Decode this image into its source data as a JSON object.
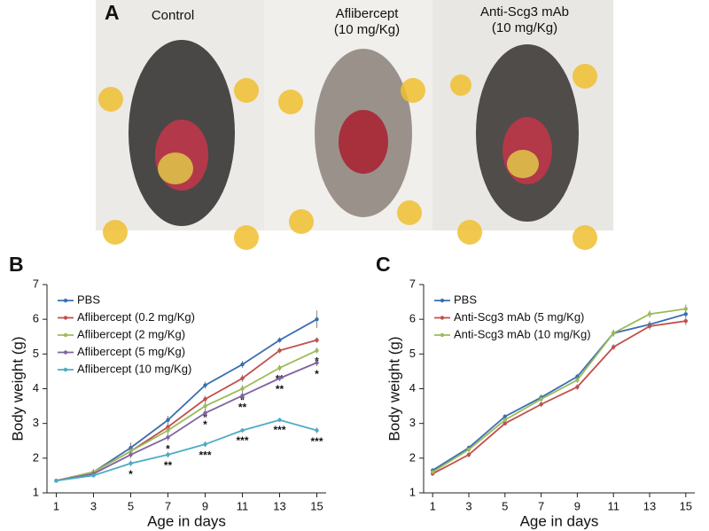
{
  "panel_a": {
    "label": "A",
    "captions": [
      [
        "Control"
      ],
      [
        "Aflibercept",
        "(10 mg/Kg)"
      ],
      [
        "Anti-Scg3 mAb",
        "(10 mg/Kg)"
      ]
    ]
  },
  "chart_data": [
    {
      "type": "line",
      "panel_label": "B",
      "x_label": "Age in days",
      "y_label": "Body weight (g)",
      "x": [
        1,
        3,
        5,
        7,
        9,
        11,
        13,
        15
      ],
      "xlim": [
        0.5,
        15.5
      ],
      "xticks": [
        1,
        3,
        5,
        7,
        9,
        11,
        13,
        15
      ],
      "ylim": [
        1,
        7
      ],
      "yticks": [
        1,
        2,
        3,
        4,
        5,
        6,
        7
      ],
      "legend": "upper left",
      "series": [
        {
          "name": "PBS",
          "color": "#3a6fb0",
          "values": [
            1.35,
            1.6,
            2.3,
            3.1,
            4.1,
            4.7,
            5.4,
            6.0
          ],
          "errors": [
            0.05,
            0.08,
            0.15,
            0.12,
            0.1,
            0.1,
            0.08,
            0.25
          ]
        },
        {
          "name": "Aflibercept (0.2 mg/Kg)",
          "color": "#c0504d",
          "values": [
            1.35,
            1.6,
            2.2,
            2.9,
            3.7,
            4.3,
            5.1,
            5.4
          ],
          "errors": [
            0.05,
            0.08,
            0.1,
            0.12,
            0.1,
            0.1,
            0.08,
            0.08
          ]
        },
        {
          "name": "Aflibercept (2 mg/Kg)",
          "color": "#9bbb59",
          "values": [
            1.35,
            1.6,
            2.2,
            2.8,
            3.5,
            4.0,
            4.6,
            5.1
          ],
          "errors": [
            0.05,
            0.08,
            0.1,
            0.1,
            0.1,
            0.1,
            0.08,
            0.08
          ],
          "significance": [
            null,
            null,
            null,
            null,
            "*",
            "*",
            "**",
            "*"
          ]
        },
        {
          "name": "Aflibercept (5 mg/Kg)",
          "color": "#8064a2",
          "values": [
            1.35,
            1.55,
            2.1,
            2.6,
            3.3,
            3.8,
            4.3,
            4.75
          ],
          "errors": [
            0.05,
            0.08,
            0.1,
            0.1,
            0.1,
            0.1,
            0.08,
            0.1
          ],
          "significance": [
            null,
            null,
            null,
            "*",
            "*",
            "**",
            "**",
            "*"
          ]
        },
        {
          "name": "Aflibercept (10 mg/Kg)",
          "color": "#4bacc6",
          "values": [
            1.35,
            1.5,
            1.85,
            2.1,
            2.4,
            2.8,
            3.1,
            2.8
          ],
          "errors": [
            0.05,
            0.05,
            0.08,
            0.08,
            0.08,
            0.06,
            0.05,
            0.08
          ],
          "significance": [
            null,
            null,
            "*",
            "**",
            "***",
            "***",
            "***",
            "***"
          ]
        }
      ]
    },
    {
      "type": "line",
      "panel_label": "C",
      "x_label": "Age in days",
      "y_label": "Body weight (g)",
      "x": [
        1,
        3,
        5,
        7,
        9,
        11,
        13,
        15
      ],
      "xlim": [
        0.5,
        15.5
      ],
      "xticks": [
        1,
        3,
        5,
        7,
        9,
        11,
        13,
        15
      ],
      "ylim": [
        1,
        7
      ],
      "yticks": [
        1,
        2,
        3,
        4,
        5,
        6,
        7
      ],
      "legend": "upper left",
      "series": [
        {
          "name": "PBS",
          "color": "#3a6fb0",
          "values": [
            1.65,
            2.3,
            3.2,
            3.75,
            4.35,
            5.6,
            5.85,
            6.15
          ],
          "errors": [
            0.05,
            0.06,
            0.06,
            0.08,
            0.08,
            0.1,
            0.1,
            0.1
          ]
        },
        {
          "name": "Anti-Scg3 mAb (5 mg/Kg)",
          "color": "#c0504d",
          "values": [
            1.55,
            2.1,
            3.0,
            3.55,
            4.05,
            5.2,
            5.8,
            5.95
          ],
          "errors": [
            0.05,
            0.08,
            0.06,
            0.08,
            0.08,
            0.08,
            0.1,
            0.12
          ]
        },
        {
          "name": "Anti-Scg3 mAb (10 mg/Kg)",
          "color": "#9bbb59",
          "values": [
            1.6,
            2.25,
            3.1,
            3.7,
            4.25,
            5.6,
            6.15,
            6.3
          ],
          "errors": [
            0.05,
            0.06,
            0.06,
            0.08,
            0.08,
            0.08,
            0.1,
            0.12
          ]
        }
      ]
    }
  ]
}
